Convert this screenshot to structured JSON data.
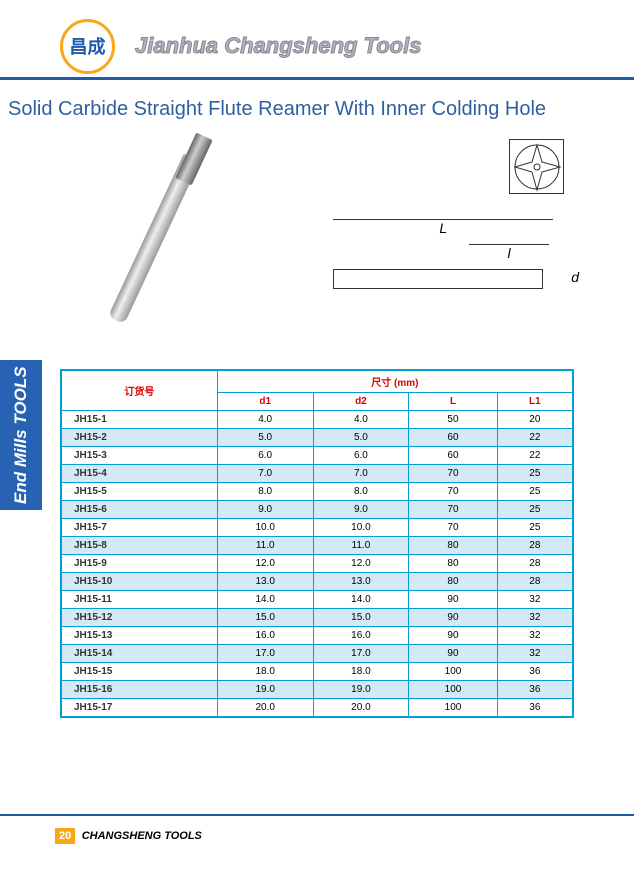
{
  "header": {
    "logo_text": "昌成",
    "company_name": "Jianhua Changsheng Tools"
  },
  "title": "Solid Carbide Straight Flute Reamer With Inner Colding Hole",
  "sidebar_label": "End Mills TOOLS",
  "schematic": {
    "dim_L": "L",
    "dim_l": "l",
    "dim_d": "d"
  },
  "table": {
    "header_corner": "订货号",
    "header_dims": "尺寸 (mm)",
    "columns": [
      "d1",
      "d2",
      "L",
      "L1"
    ],
    "rows": [
      [
        "JH15-1",
        "4.0",
        "4.0",
        "50",
        "20"
      ],
      [
        "JH15-2",
        "5.0",
        "5.0",
        "60",
        "22"
      ],
      [
        "JH15-3",
        "6.0",
        "6.0",
        "60",
        "22"
      ],
      [
        "JH15-4",
        "7.0",
        "7.0",
        "70",
        "25"
      ],
      [
        "JH15-5",
        "8.0",
        "8.0",
        "70",
        "25"
      ],
      [
        "JH15-6",
        "9.0",
        "9.0",
        "70",
        "25"
      ],
      [
        "JH15-7",
        "10.0",
        "10.0",
        "70",
        "25"
      ],
      [
        "JH15-8",
        "11.0",
        "11.0",
        "80",
        "28"
      ],
      [
        "JH15-9",
        "12.0",
        "12.0",
        "80",
        "28"
      ],
      [
        "JH15-10",
        "13.0",
        "13.0",
        "80",
        "28"
      ],
      [
        "JH15-11",
        "14.0",
        "14.0",
        "90",
        "32"
      ],
      [
        "JH15-12",
        "15.0",
        "15.0",
        "90",
        "32"
      ],
      [
        "JH15-13",
        "16.0",
        "16.0",
        "90",
        "32"
      ],
      [
        "JH15-14",
        "17.0",
        "17.0",
        "90",
        "32"
      ],
      [
        "JH15-15",
        "18.0",
        "18.0",
        "100",
        "36"
      ],
      [
        "JH15-16",
        "19.0",
        "19.0",
        "100",
        "36"
      ],
      [
        "JH15-17",
        "20.0",
        "20.0",
        "100",
        "36"
      ]
    ]
  },
  "footer": {
    "page_number": "20",
    "brand": "CHANGSHENG TOOLS"
  }
}
